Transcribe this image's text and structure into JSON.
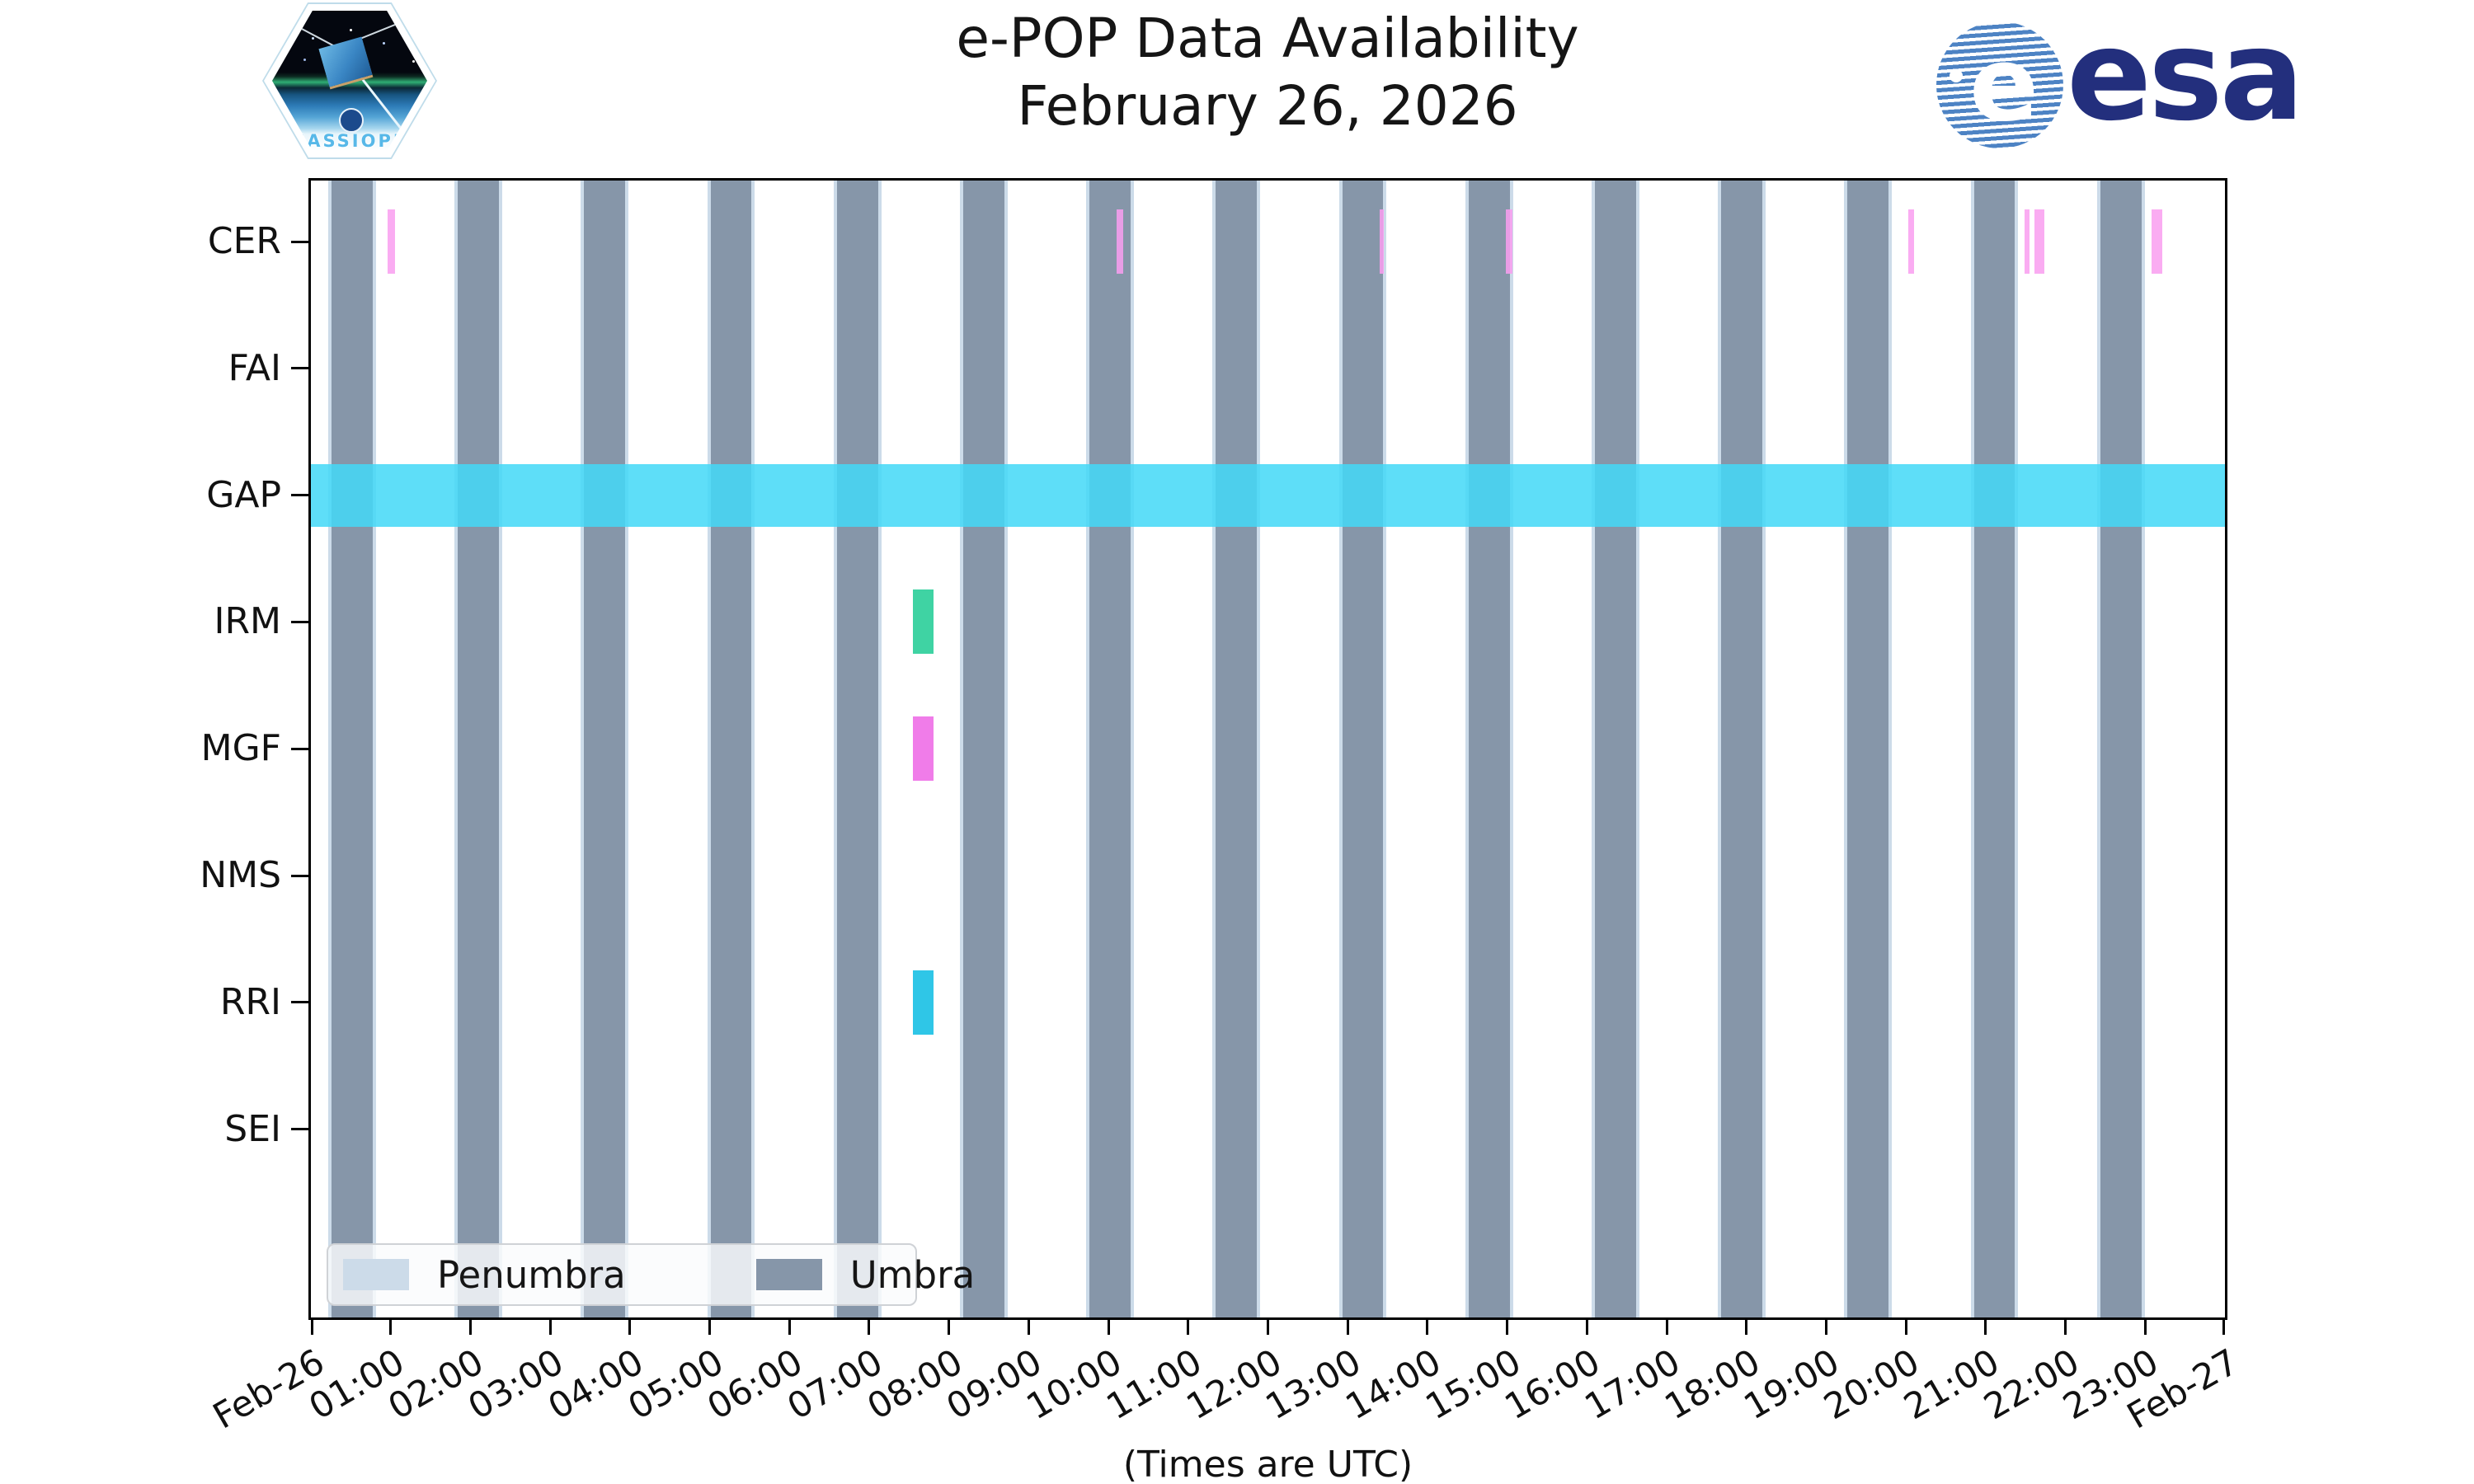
{
  "header": {
    "title_line1": "e-POP Data Availability",
    "title_line2": "February 26, 2026",
    "cassiope_label": "CASSIOPE",
    "esa_word": "esa",
    "esa_globe_letter": "e"
  },
  "legend": {
    "penumbra_label": "Penumbra",
    "umbra_label": "Umbra"
  },
  "colors": {
    "umbra": "#8696a9",
    "penumbra": "#ccdbe9",
    "gap_band": "rgba(68,217,247,0.86)",
    "cer_mark": "rgba(249,158,240,0.86)",
    "irm_mark": "rgba(31,204,148,0.86)",
    "mgf_mark": "rgba(238,103,229,0.86)",
    "rri_mark": "rgba(13,189,227,0.86)",
    "esa_navy": "#232f7d",
    "esa_globe_blue": "#4d83c4"
  },
  "chart_data": {
    "type": "timeline",
    "title": "e-POP Data Availability",
    "subtitle": "February 26, 2026",
    "xlabel": "(Times are UTC)",
    "x_range_hours": [
      0,
      24
    ],
    "x_tick_labels": [
      "Feb-26",
      "01:00",
      "02:00",
      "03:00",
      "04:00",
      "05:00",
      "06:00",
      "07:00",
      "08:00",
      "09:00",
      "10:00",
      "11:00",
      "12:00",
      "13:00",
      "14:00",
      "15:00",
      "16:00",
      "17:00",
      "18:00",
      "19:00",
      "20:00",
      "21:00",
      "22:00",
      "23:00",
      "Feb-27"
    ],
    "rows": [
      "CER",
      "FAI",
      "GAP",
      "IRM",
      "MGF",
      "NMS",
      "RRI",
      "SEI"
    ],
    "umbra_intervals_hours": [
      [
        0.258,
        0.774
      ],
      [
        1.842,
        2.358
      ],
      [
        3.426,
        3.942
      ],
      [
        5.011,
        5.526
      ],
      [
        6.595,
        7.11
      ],
      [
        8.179,
        8.695
      ],
      [
        9.763,
        10.279
      ],
      [
        11.347,
        11.863
      ],
      [
        12.931,
        13.447
      ],
      [
        14.516,
        15.031
      ],
      [
        16.1,
        16.615
      ],
      [
        17.684,
        18.2
      ],
      [
        19.268,
        19.784
      ],
      [
        20.852,
        21.368
      ],
      [
        22.436,
        22.952
      ]
    ],
    "penumbra_note": "thin penumbra strips flank each umbra interval (~2 min each side)",
    "gap_interval_hours": [
      [
        0.0,
        24.0
      ]
    ],
    "marks": [
      {
        "row": "CER",
        "color_key": "cer_mark",
        "intervals_hours": [
          [
            0.959,
            1.052
          ],
          [
            10.107,
            10.19
          ],
          [
            13.398,
            13.449
          ],
          [
            14.986,
            15.069
          ],
          [
            20.03,
            20.102
          ],
          [
            21.484,
            21.546
          ],
          [
            21.608,
            21.732
          ],
          [
            23.083,
            23.217
          ]
        ]
      },
      {
        "row": "IRM",
        "color_key": "irm_mark",
        "intervals_hours": [
          [
            7.549,
            7.807
          ]
        ]
      },
      {
        "row": "MGF",
        "color_key": "mgf_mark",
        "intervals_hours": [
          [
            7.549,
            7.807
          ]
        ]
      },
      {
        "row": "RRI",
        "color_key": "rri_mark",
        "intervals_hours": [
          [
            7.549,
            7.807
          ]
        ]
      }
    ]
  }
}
